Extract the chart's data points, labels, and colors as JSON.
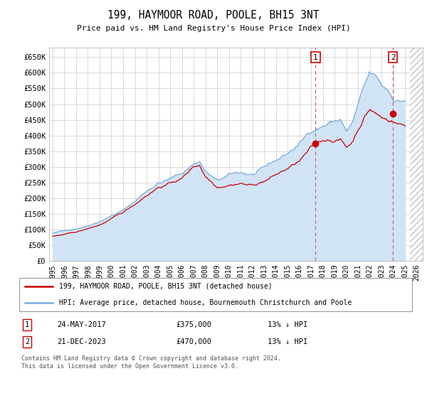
{
  "title": "199, HAYMOOR ROAD, POOLE, BH15 3NT",
  "subtitle": "Price paid vs. HM Land Registry's House Price Index (HPI)",
  "ylim": [
    0,
    680000
  ],
  "yticks": [
    0,
    50000,
    100000,
    150000,
    200000,
    250000,
    300000,
    350000,
    400000,
    450000,
    500000,
    550000,
    600000,
    650000
  ],
  "hpi_color": "#7aabdc",
  "hpi_fill_color": "#d0e4f5",
  "price_color": "#cc0000",
  "grid_color": "#cccccc",
  "background_color": "#ffffff",
  "sale1_x": 2017.38,
  "sale1_y": 375000,
  "sale1_label": "1",
  "sale2_x": 2023.97,
  "sale2_y": 470000,
  "sale2_label": "2",
  "legend_label1": "199, HAYMOOR ROAD, POOLE, BH15 3NT (detached house)",
  "legend_label2": "HPI: Average price, detached house, Bournemouth Christchurch and Poole",
  "note1_label": "1",
  "note1_date": "24-MAY-2017",
  "note1_price": "£375,000",
  "note1_pct": "13% ↓ HPI",
  "note2_label": "2",
  "note2_date": "21-DEC-2023",
  "note2_price": "£470,000",
  "note2_pct": "13% ↓ HPI",
  "footer": "Contains HM Land Registry data © Crown copyright and database right 2024.\nThis data is licensed under the Open Government Licence v3.0.",
  "xlim_left": 1994.7,
  "xlim_right": 2026.5,
  "hatch_start": 2025.4,
  "hatch_end": 2026.5
}
